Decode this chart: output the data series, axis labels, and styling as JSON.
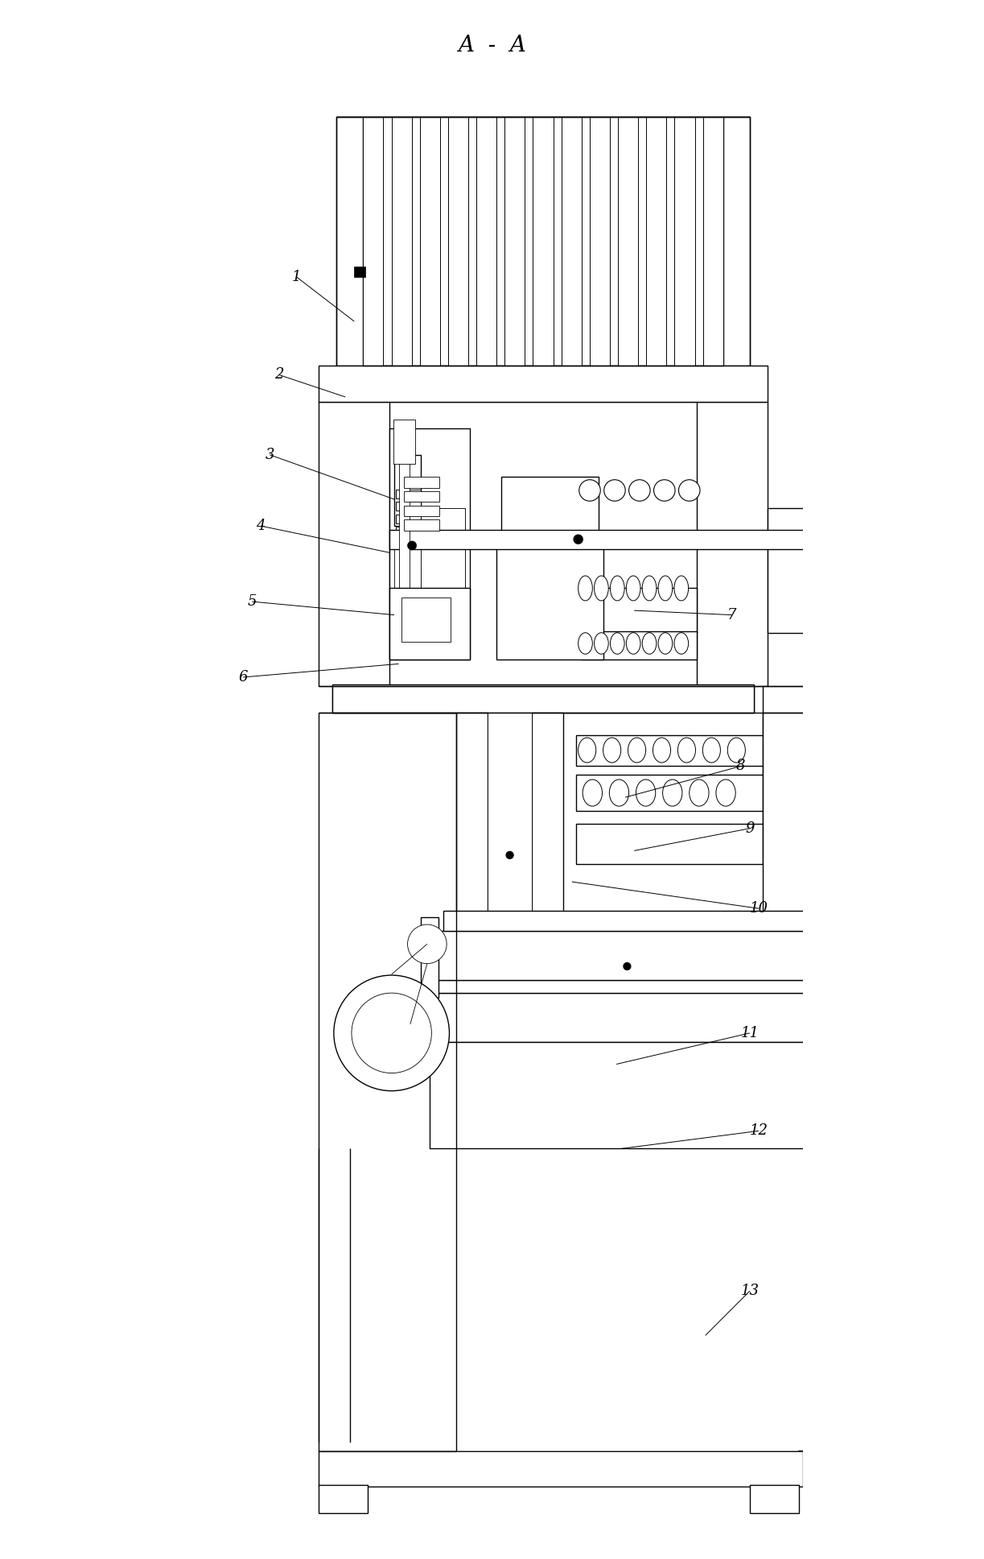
{
  "title": "A - A",
  "title_fontsize": 20,
  "bg_color": "#ffffff",
  "line_color": "#000000",
  "label_fontsize": 13,
  "lw_main": 1.0,
  "lw_thin": 0.6,
  "lw_thick": 1.5
}
